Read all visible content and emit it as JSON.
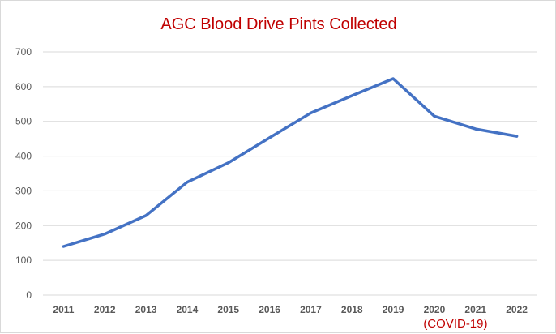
{
  "chart_data": {
    "type": "line",
    "title": "AGC Blood Drive Pints Collected",
    "xlabel": "",
    "ylabel": "",
    "categories": [
      "2011",
      "2012",
      "2013",
      "2014",
      "2015",
      "2016",
      "2017",
      "2018",
      "2019",
      "2020",
      "2021",
      "2022"
    ],
    "series": [
      {
        "values": [
          140,
          176,
          229,
          325,
          381,
          453,
          524,
          574,
          623,
          515,
          478,
          457
        ]
      }
    ],
    "ylim": [
      0,
      700
    ],
    "yticks": [
      0,
      100,
      200,
      300,
      400,
      500,
      600,
      700
    ],
    "grid": true,
    "legend": "none",
    "annotations": [
      {
        "category": "2020",
        "text": "(COVID-19)"
      }
    ],
    "colors": {
      "line": "#4472c4",
      "title": "#c00000",
      "annotation": "#c00000",
      "grid": "#d9d9d9"
    }
  }
}
